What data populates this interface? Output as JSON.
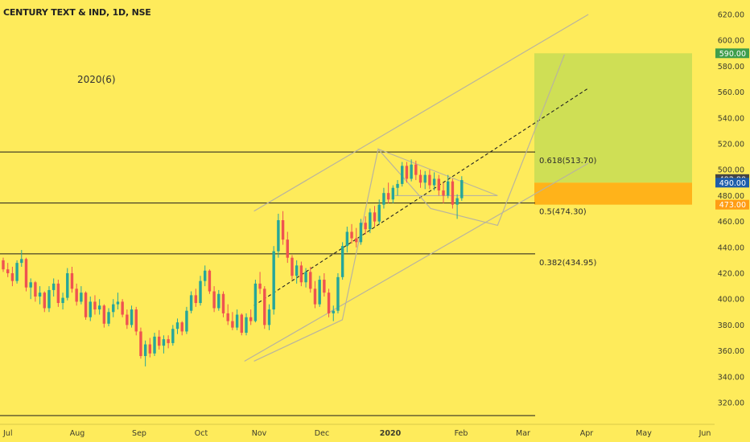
{
  "title": "CENTURY TEXT & IND, 1D, NSE",
  "note": "2020(6)",
  "colors": {
    "background": "#FEEB5B",
    "up": "#26A69A",
    "down": "#EF5350",
    "target_box": "#CFDF55",
    "stop_box": "#FFB31A",
    "channel": "#B9B49E",
    "price_tag_green": "#3F9E4C",
    "price_tag_blue": "#1E5DAA",
    "price_tag_orange": "#FF9D14",
    "price_tag_dark": "#444444"
  },
  "chart_data": {
    "type": "candlestick",
    "ylim": [
      305,
      630
    ],
    "y_ticks": [
      "620.00",
      "600.00",
      "580.00",
      "560.00",
      "540.00",
      "520.00",
      "500.00",
      "480.00",
      "460.00",
      "440.00",
      "420.00",
      "400.00",
      "380.00",
      "360.00",
      "340.00",
      "320.00"
    ],
    "x_ticks": [
      "Jul",
      "Aug",
      "Sep",
      "Oct",
      "Nov",
      "Dec",
      "2020",
      "Feb",
      "Mar",
      "Apr",
      "May",
      "Jun"
    ],
    "price_tags": [
      {
        "label": "590.00",
        "value": 590,
        "color": "green"
      },
      {
        "label": "492.80",
        "value": 492.8,
        "color": "dark"
      },
      {
        "label": "490.00",
        "value": 490,
        "color": "blue"
      },
      {
        "label": "473.00",
        "value": 473,
        "color": "orange"
      }
    ],
    "fib_levels": [
      {
        "label": "0.618(513.70)",
        "value": 513.7
      },
      {
        "label": "0.5(474.30)",
        "value": 474.3
      },
      {
        "label": "0.382(434.95)",
        "value": 434.95
      }
    ],
    "bottom_line": 310,
    "target_zone": {
      "top": 590,
      "bottom": 490
    },
    "stop_zone": {
      "top": 490,
      "bottom": 473
    },
    "candles": [
      [
        430,
        432,
        421,
        423
      ],
      [
        423,
        428,
        417,
        420
      ],
      [
        420,
        425,
        410,
        414
      ],
      [
        414,
        430,
        412,
        428
      ],
      [
        428,
        438,
        425,
        431
      ],
      [
        431,
        432,
        406,
        409
      ],
      [
        409,
        416,
        400,
        413
      ],
      [
        413,
        414,
        398,
        402
      ],
      [
        402,
        410,
        396,
        405
      ],
      [
        405,
        406,
        390,
        393
      ],
      [
        393,
        410,
        390,
        407
      ],
      [
        407,
        416,
        402,
        412
      ],
      [
        412,
        415,
        394,
        397
      ],
      [
        397,
        405,
        392,
        401
      ],
      [
        401,
        424,
        399,
        420
      ],
      [
        420,
        425,
        405,
        408
      ],
      [
        408,
        412,
        395,
        398
      ],
      [
        398,
        410,
        396,
        405
      ],
      [
        405,
        406,
        384,
        386
      ],
      [
        386,
        402,
        383,
        398
      ],
      [
        398,
        403,
        388,
        392
      ],
      [
        392,
        400,
        388,
        395
      ],
      [
        395,
        396,
        378,
        381
      ],
      [
        381,
        393,
        379,
        390
      ],
      [
        390,
        400,
        386,
        396
      ],
      [
        396,
        405,
        392,
        398
      ],
      [
        398,
        400,
        386,
        388
      ],
      [
        388,
        392,
        377,
        380
      ],
      [
        380,
        395,
        378,
        392
      ],
      [
        392,
        394,
        372,
        375
      ],
      [
        375,
        378,
        354,
        356
      ],
      [
        356,
        368,
        348,
        365
      ],
      [
        365,
        370,
        355,
        358
      ],
      [
        358,
        374,
        356,
        371
      ],
      [
        371,
        376,
        361,
        364
      ],
      [
        364,
        372,
        358,
        369
      ],
      [
        369,
        372,
        362,
        366
      ],
      [
        366,
        380,
        364,
        377
      ],
      [
        377,
        385,
        373,
        382
      ],
      [
        382,
        383,
        372,
        375
      ],
      [
        375,
        394,
        373,
        391
      ],
      [
        391,
        406,
        389,
        403
      ],
      [
        403,
        408,
        394,
        397
      ],
      [
        397,
        418,
        395,
        414
      ],
      [
        414,
        426,
        410,
        422
      ],
      [
        422,
        423,
        404,
        406
      ],
      [
        406,
        410,
        390,
        393
      ],
      [
        393,
        407,
        391,
        404
      ],
      [
        404,
        406,
        386,
        389
      ],
      [
        389,
        396,
        380,
        383
      ],
      [
        383,
        390,
        376,
        378
      ],
      [
        378,
        392,
        376,
        388
      ],
      [
        388,
        389,
        372,
        374
      ],
      [
        374,
        389,
        372,
        386
      ],
      [
        386,
        392,
        380,
        383
      ],
      [
        383,
        415,
        382,
        412
      ],
      [
        412,
        421,
        404,
        408
      ],
      [
        408,
        410,
        377,
        380
      ],
      [
        380,
        396,
        376,
        392
      ],
      [
        392,
        441,
        388,
        437
      ],
      [
        437,
        466,
        432,
        461
      ],
      [
        461,
        468,
        442,
        446
      ],
      [
        446,
        452,
        428,
        432
      ],
      [
        432,
        434,
        415,
        418
      ],
      [
        418,
        430,
        412,
        426
      ],
      [
        426,
        429,
        410,
        413
      ],
      [
        413,
        424,
        409,
        421
      ],
      [
        421,
        425,
        405,
        408
      ],
      [
        408,
        414,
        393,
        396
      ],
      [
        396,
        418,
        394,
        415
      ],
      [
        415,
        420,
        402,
        405
      ],
      [
        405,
        408,
        386,
        389
      ],
      [
        389,
        395,
        383,
        391
      ],
      [
        391,
        420,
        389,
        417
      ],
      [
        417,
        444,
        415,
        441
      ],
      [
        441,
        456,
        436,
        452
      ],
      [
        452,
        458,
        443,
        447
      ],
      [
        447,
        455,
        440,
        444
      ],
      [
        444,
        462,
        442,
        459
      ],
      [
        459,
        464,
        450,
        454
      ],
      [
        454,
        470,
        451,
        467
      ],
      [
        467,
        472,
        456,
        460
      ],
      [
        460,
        477,
        458,
        473
      ],
      [
        473,
        486,
        470,
        482
      ],
      [
        482,
        490,
        474,
        477
      ],
      [
        477,
        488,
        474,
        486
      ],
      [
        486,
        492,
        480,
        489
      ],
      [
        489,
        506,
        487,
        503
      ],
      [
        503,
        506,
        490,
        493
      ],
      [
        493,
        508,
        491,
        504
      ],
      [
        504,
        507,
        492,
        496
      ],
      [
        496,
        500,
        486,
        490
      ],
      [
        490,
        499,
        485,
        496
      ],
      [
        496,
        500,
        485,
        488
      ],
      [
        488,
        498,
        484,
        493
      ],
      [
        493,
        496,
        480,
        484
      ],
      [
        484,
        490,
        474,
        480
      ],
      [
        480,
        496,
        478,
        491
      ],
      [
        491,
        493,
        470,
        473
      ],
      [
        473,
        481,
        462,
        478
      ],
      [
        478,
        495,
        476,
        492
      ]
    ],
    "series": [
      {
        "type": "channel-line",
        "points": [
          [
            "2019-10-14",
            468
          ],
          [
            "2020-03-02",
            620
          ]
        ]
      },
      {
        "type": "channel-line",
        "points": [
          [
            "2019-10-10",
            352
          ],
          [
            "2020-03-02",
            505
          ]
        ]
      },
      {
        "type": "dashed-midline",
        "points": [
          [
            "2019-10-14",
            395
          ],
          [
            "2020-03-02",
            563
          ]
        ]
      },
      {
        "type": "wave",
        "points": [
          [
            "2019-10-14",
            352
          ],
          [
            "2019-11-20",
            384
          ],
          [
            "2019-12-05",
            516
          ],
          [
            "2019-12-27",
            470
          ],
          [
            "2020-01-24",
            457
          ],
          [
            "2020-02-21",
            589
          ]
        ]
      }
    ]
  }
}
